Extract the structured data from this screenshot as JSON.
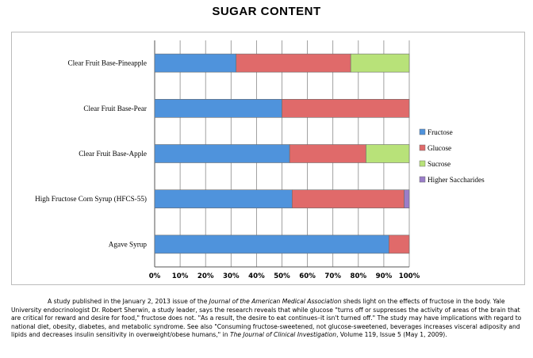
{
  "chart_data": {
    "type": "bar",
    "stacked": true,
    "orientation": "horizontal",
    "title": "SUGAR CONTENT",
    "categories": [
      "Clear Fruit Base-Pineapple",
      "Clear Fruit Base-Pear",
      "Clear Fruit Base-Apple",
      "High Fructose Corn Syrup (HFCS-55)",
      "Agave Syrup"
    ],
    "series": [
      {
        "name": "Fructose",
        "color": "#4f93dc",
        "values": [
          32,
          50,
          53,
          54,
          92
        ]
      },
      {
        "name": "Glucose",
        "color": "#e06a6a",
        "values": [
          45,
          50,
          30,
          44,
          8
        ]
      },
      {
        "name": "Sucrose",
        "color": "#b8e279",
        "values": [
          23,
          0,
          17,
          0,
          0
        ]
      },
      {
        "name": "Higher Saccharides",
        "color": "#9a7ec9",
        "values": [
          0,
          0,
          0,
          2,
          0
        ]
      }
    ],
    "xlim": [
      0,
      100
    ],
    "xticks": [
      "0%",
      "10%",
      "20%",
      "30%",
      "40%",
      "50%",
      "60%",
      "70%",
      "80%",
      "90%",
      "100%"
    ],
    "legend": "right",
    "grid": "vertical"
  },
  "caption": {
    "p1": "A study published in the January 2, 2013 issue of the ",
    "journal1": "Journal of the American Medical Association",
    "p2": " sheds light on the effects of fructose in the body. Yale University endocrinologist Dr. Robert Sherwin, a study leader, says the research reveals that while glucose \"turns off or suppresses the activity of areas of the brain that are critical for reward and desire for food,\" fructose does not.  \"As a result, the desire to eat continues–it isn't turned off.\"  The study may have implications with regard to national diet, obesity, diabetes, and metabolic syndrome.  See also \"Consuming fructose-sweetened, not glucose-sweetened, beverages increases visceral adiposity and lipids and decreases insulin sensitivity in overweight/obese humans,\" in ",
    "journal2": "The Journal of Clinical Investigation",
    "p3": ", Volume 119, Issue 5 (May 1, 2009)."
  }
}
